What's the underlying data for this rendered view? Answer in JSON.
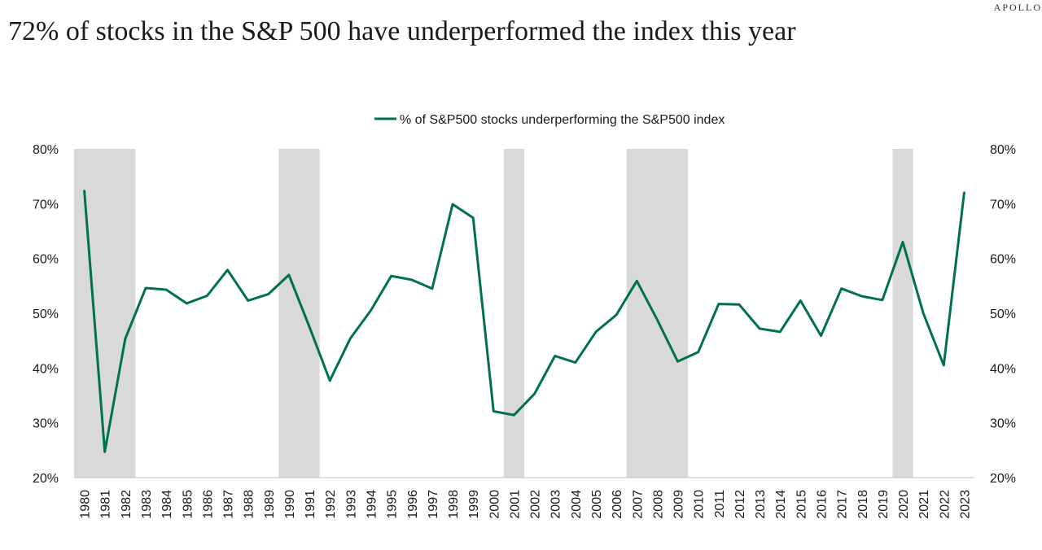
{
  "brand": "APOLLO",
  "title": "72% of stocks in the S&P 500 have underperformed the index this year",
  "chart_data": {
    "type": "line",
    "title": "72% of stocks in the S&P 500 have underperformed the index this year",
    "xlabel": "",
    "ylabel": "",
    "ylim": [
      20,
      80
    ],
    "yticks": [
      "20%",
      "30%",
      "40%",
      "50%",
      "60%",
      "70%",
      "80%"
    ],
    "legend_position": "top-center",
    "series_color": "#00704f",
    "recession_color": "#d9d9d9",
    "categories": [
      "1980",
      "1981",
      "1982",
      "1983",
      "1984",
      "1985",
      "1986",
      "1987",
      "1988",
      "1989",
      "1990",
      "1991",
      "1992",
      "1993",
      "1994",
      "1995",
      "1996",
      "1997",
      "1998",
      "1999",
      "2000",
      "2001",
      "2002",
      "2003",
      "2004",
      "2005",
      "2006",
      "2007",
      "2008",
      "2009",
      "2010",
      "2011",
      "2012",
      "2013",
      "2014",
      "2015",
      "2016",
      "2017",
      "2018",
      "2019",
      "2020",
      "2021",
      "2022",
      "2023"
    ],
    "series": [
      {
        "name": "% of S&P500 stocks underperforming the S&P500 index",
        "values": [
          72.3,
          24.7,
          45.3,
          54.6,
          54.3,
          51.8,
          53.2,
          57.9,
          52.3,
          53.5,
          57.0,
          47.5,
          37.7,
          45.4,
          50.5,
          56.8,
          56.1,
          54.5,
          69.9,
          67.4,
          32.1,
          31.4,
          35.3,
          42.2,
          41.0,
          46.6,
          49.7,
          55.9,
          48.8,
          41.2,
          42.9,
          51.7,
          51.6,
          47.2,
          46.6,
          52.3,
          45.9,
          54.5,
          53.1,
          52.4,
          63.0,
          50.0,
          40.5,
          72.0
        ]
      }
    ],
    "recessions": [
      {
        "from": "1980",
        "to": "1982"
      },
      {
        "from": "1990",
        "to": "1991"
      },
      {
        "from": "2001",
        "to": "2001"
      },
      {
        "from": "2007",
        "to": "2009"
      },
      {
        "from": "2020",
        "to": "2020"
      }
    ]
  }
}
